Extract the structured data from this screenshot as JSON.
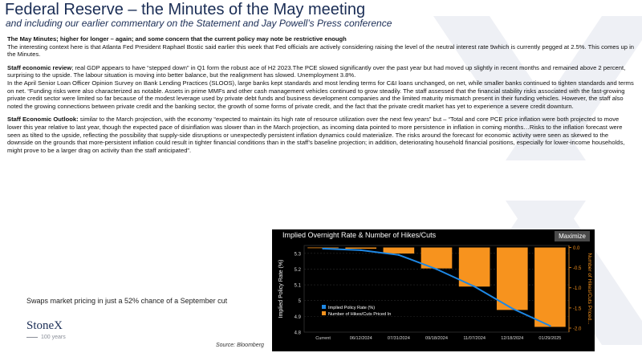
{
  "header": {
    "title": "Federal Reserve – the Minutes of the May meeting",
    "subtitle": "and including our earlier commentary on the Statement and Jay Powell’s Press conference"
  },
  "body": {
    "p1_heading": "The May Minutes; higher for longer – again; and some concern that the current policy may note be restrictive enough",
    "p1_text": "The interesting context here is that Atlanta Fed President Raphael Bostic said earlier this week that Fed officials are actively considering raising the level of the neutral interest rate 9which is currently pegged at 2.5%.  This comes up in the Minutes.",
    "p2_heading": "Staff economic review",
    "p2_text": "; real GDP appears to have “stepped down” in Q1 form the robust ace of H2 2023.The PCE slowed significantly over the past year but had moved up slightly in recent months and remained above 2 percent, surprising to the upside.  The labour situation is moving into better balance, but the realignment has slowed.  Unemployment 3.8%.",
    "p2_text_b": "In the April Senior Loan Officer Opinion Survey on Bank Lending Practices (SLOOS),  large banks kept standards and most lending terms for C&I loans unchanged, on net, while smaller banks continued to tighten standards and terms on net.  “Funding risks were also characterized as notable. Assets in prime MMFs and other cash management vehicles continued to grow steadily. The staff assessed that the financial stability risks associated with the fast-growing private credit sector were limited so far because of the modest leverage used by private debt funds and business development companies and the limited maturity mismatch present in their funding vehicles. However, the staff also noted the growing connections between private credit and the banking sector, the growth of some forms of private credit, and the fact that the private credit market has yet to experience a severe credit downturn.",
    "p3_heading": "Staff Economic Outlook:",
    "p3_text": " similar to the March projection, with the economy “expected to maintain its high rate of resource utilization over the next few years” but – “Total and core PCE price inflation were both projected to move lower this year relative to last year, though the expected pace of disinflation was slower than in the March projection, as incoming data pointed to more persistence in inflation in coming months…Risks to the inflation forecast were seen as tilted to the upside, reflecting the possibility that supply-side disruptions or unexpectedly persistent inflation dynamics could materialize. The risks around the forecast for economic activity were seen as skewed to the downside on the grounds that more-persistent inflation could result in tighter financial conditions than in the staff’s baseline projection; in addition, deteriorating household financial positions, especially for lower-income households, might prove to be a larger drag on activity than the staff anticipated”."
  },
  "caption": {
    "swaps": "Swaps market pricing in just a 52% chance of a September cut",
    "source": "Source: Bloomberg"
  },
  "logo": {
    "brand": "StoneX",
    "tagline": "100 years"
  },
  "chart_panel": {
    "maximize_label": "Maximize"
  },
  "colors": {
    "title": "#1a2d55",
    "rate_line": "#1e88e5",
    "hikes_bar": "#f7931e",
    "chart_bg": "#000000"
  },
  "chart_data": {
    "type": "bar",
    "title": "Implied Overnight Rate & Number of Hikes/Cuts",
    "categories": [
      "Current",
      "06/12/2024",
      "07/31/2024",
      "09/18/2024",
      "11/07/2024",
      "12/18/2024",
      "01/29/2025"
    ],
    "series": [
      {
        "name": "Implied Policy Rate (%)",
        "type": "line",
        "axis": "left",
        "values": [
          5.33,
          5.32,
          5.29,
          5.2,
          5.09,
          4.95,
          4.84
        ]
      },
      {
        "name": "Number of Hikes/Cuts Priced In",
        "type": "bar",
        "axis": "right",
        "values": [
          0.0,
          -0.03,
          -0.15,
          -0.52,
          -0.97,
          -1.55,
          -1.97
        ]
      }
    ],
    "ylabel": "Implied Policy Rate (%)",
    "ylabel_right": "Number of Hikes/Cuts Priced...",
    "ylim": [
      4.8,
      5.35
    ],
    "ylim_right": [
      -2.1,
      0.05
    ],
    "yticks": [
      "5.3",
      "5.2",
      "5.1",
      "5",
      "4.9",
      "4.8"
    ],
    "yticks_right": [
      "0.0",
      "-0.5",
      "-1.0",
      "-1.5",
      "-2.0"
    ],
    "legend_position": "bottom-left",
    "grid": true
  }
}
